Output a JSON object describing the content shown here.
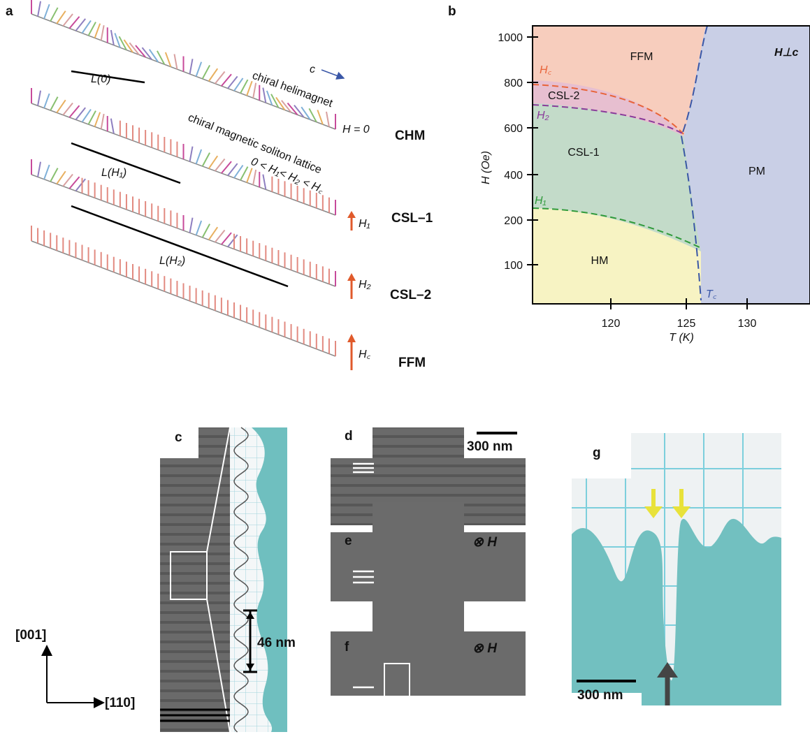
{
  "panels": {
    "a": {
      "label": "a",
      "c_axis": "c",
      "helimagnet": "chiral helimagnet",
      "h_zero": "H = 0",
      "chm": "CHM",
      "soliton": "chiral magnetic soliton lattice",
      "inequality": "0 < H₁< H₂ < H꜀",
      "l0": "L(0)",
      "lh1": "L(H₁)",
      "lh2": "L(H₂)",
      "h1": "H₁",
      "h2": "H₂",
      "hc": "H꜀",
      "csl1": "CSL–1",
      "csl2": "CSL–2",
      "ffm": "FFM"
    },
    "b": {
      "label": "b",
      "ylabel": "H (Oe)",
      "xlabel": "T (K)",
      "yticks": [
        "1000",
        "800",
        "600",
        "400",
        "200",
        "100"
      ],
      "xticks": [
        "120",
        "125",
        "130"
      ],
      "ffm": "FFM",
      "hperp": "H⊥c",
      "hc": "H꜀",
      "csl2": "CSL-2",
      "h2": "H₂",
      "csl1": "CSL-1",
      "pm": "PM",
      "h1": "H₁",
      "hm": "HM",
      "tc": "T꜀"
    },
    "c": {
      "label": "c",
      "period": "46 nm"
    },
    "d": {
      "label": "d",
      "scale": "300 nm"
    },
    "e": {
      "label": "e",
      "field": "⊗ H"
    },
    "f": {
      "label": "f",
      "field": "⊗ H"
    },
    "g": {
      "label": "g",
      "scale": "300 nm"
    },
    "axes": {
      "up": "[001]",
      "right": "[110]"
    }
  }
}
